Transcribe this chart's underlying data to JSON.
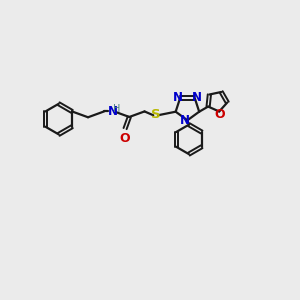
{
  "bg_color": "#ebebeb",
  "bond_color": "#1a1a1a",
  "N_color": "#0000cc",
  "O_color": "#cc0000",
  "S_color": "#b8b800",
  "H_color": "#4a8080",
  "lw": 1.6,
  "lw_dbl": 1.4,
  "sep": 0.055,
  "figsize": [
    3.0,
    3.0
  ],
  "dpi": 100,
  "xlim": [
    0,
    10
  ],
  "ylim": [
    0,
    10
  ]
}
